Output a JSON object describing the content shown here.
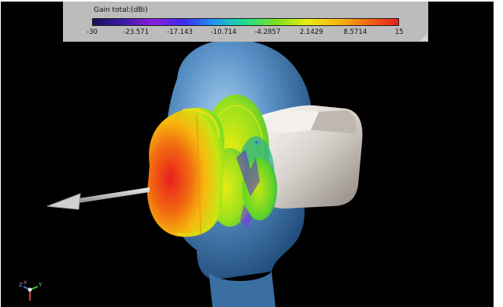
{
  "legend": {
    "title": "Gain total:(dBi)",
    "ticks": [
      "-30",
      "-23.571",
      "-17.143",
      "-10.714",
      "-4.2857",
      "2.1429",
      "8.5714",
      "15"
    ],
    "gradient_stops": [
      "#1a0f5a",
      "#3d1aa6",
      "#8a1de0",
      "#3a2cf0",
      "#1d9af2",
      "#1ee08e",
      "#7fe01e",
      "#e6ec12",
      "#f7b80e",
      "#f26a10",
      "#e81e1e"
    ]
  },
  "axes": {
    "x_label": "X",
    "y_label": "Y",
    "z_label": "Z"
  },
  "colors": {
    "background": "#000000",
    "panel": "#bcbcbc",
    "head": "#5a93c8",
    "device": "#d8d2cc",
    "arrow": "#c8c8c8"
  },
  "icons": {
    "triad": "coordinate-triad-icon",
    "grip": "resize-grip-icon"
  }
}
